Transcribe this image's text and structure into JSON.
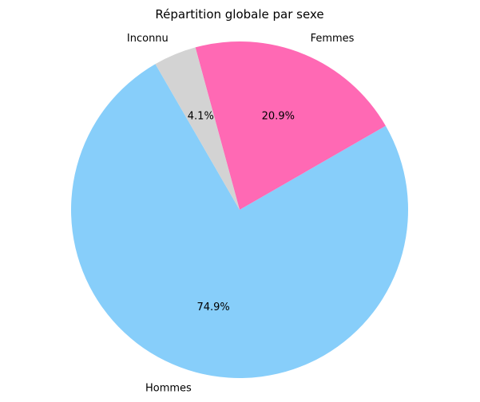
{
  "chart_data": {
    "type": "pie",
    "title": "Répartition globale par sexe",
    "slices": [
      {
        "label": "Hommes",
        "value": 74.9,
        "display": "74.9%",
        "color": "#87CEFA"
      },
      {
        "label": "Femmes",
        "value": 20.9,
        "display": "20.9%",
        "color": "#FF69B4"
      },
      {
        "label": "Inconnu",
        "value": 4.1,
        "display": "4.1%",
        "color": "#D3D3D3"
      }
    ],
    "start_angle_deg": 120,
    "direction": "counterclockwise",
    "legend": "none"
  }
}
